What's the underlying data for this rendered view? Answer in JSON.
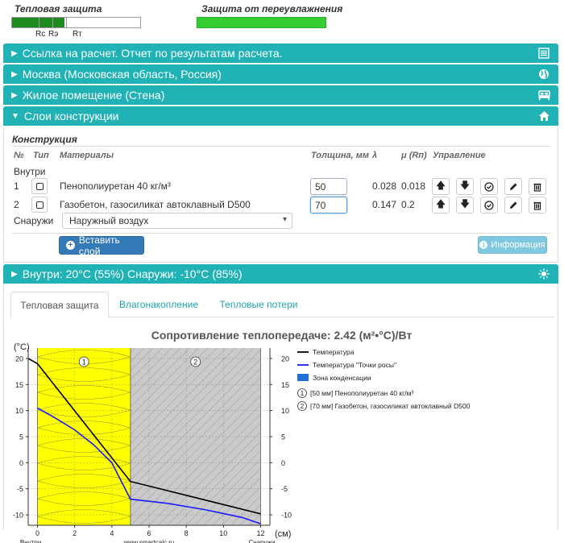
{
  "indicators": {
    "thermal_title": "Тепловая защита",
    "humidity_title": "Защита от переувлажнения",
    "labels": [
      "Rc",
      "Rэ",
      "Rт"
    ],
    "thermal_fill_fraction": 0.41,
    "humidity_fill_fraction": 1.0,
    "thermal_color": "#1f8a1f",
    "humidity_color": "#33cc33"
  },
  "accordion": [
    {
      "label": "Ссылка на расчет. Отчет по результатам расчета.",
      "icon": "list-icon",
      "expanded": false
    },
    {
      "label": "Москва (Московская область, Россия)",
      "icon": "globe-icon",
      "expanded": false
    },
    {
      "label": "Жилое помещение (Стена)",
      "icon": "bed-icon",
      "expanded": false
    },
    {
      "label": "Слои конструкции",
      "icon": "home-icon",
      "expanded": true
    },
    {
      "label": "Внутри: 20°C (55%) Снаружи: -10°C (85%)",
      "icon": "sun-icon",
      "expanded": false
    }
  ],
  "accent_color": "#20b2b5",
  "construction": {
    "title": "Конструкция",
    "headers": {
      "num": "№",
      "type": "Тип",
      "materials": "Материалы",
      "thickness": "Толщина, мм",
      "lambda": "λ",
      "mu": "μ (Rп)",
      "control": "Управление"
    },
    "inside_label": "Внутри",
    "outside_label": "Снаружи",
    "layers": [
      {
        "num": "1",
        "material": "Пенополиуретан 40 кг/м³",
        "thickness": "50",
        "lambda": "0.028",
        "mu": "0.018"
      },
      {
        "num": "2",
        "material": "Газобетон, газосиликат автоклавный D500",
        "thickness": "70",
        "lambda": "0.147",
        "mu": "0.2"
      }
    ],
    "outside_select": "Наружный воздух",
    "insert_button": "Вставить слой",
    "info_button": "Информация"
  },
  "tabs": [
    {
      "label": "Тепловая защита",
      "active": true
    },
    {
      "label": "Влагонакопление",
      "active": false
    },
    {
      "label": "Тепловые потери",
      "active": false
    }
  ],
  "chart_data": {
    "type": "line",
    "title": "Сопротивление теплопередаче: 2.42 (м²•°C)/Вт",
    "ylabel": "(°C)",
    "xlabel": "(см)",
    "xlim": [
      -0.5,
      12.5
    ],
    "ylim": [
      -12,
      22
    ],
    "x_ticks": [
      0,
      2,
      4,
      6,
      8,
      10,
      12
    ],
    "y_ticks": [
      20,
      15,
      10,
      5,
      0,
      -5,
      -10
    ],
    "left_axis_caption": "Внутри",
    "center_caption": "www.smartcalc.ru",
    "right_axis_caption": "Снаружи",
    "layers": [
      {
        "id": "1",
        "x_from": 0,
        "x_to": 5,
        "color": "#ffff00",
        "label": "[50 мм] Пенополиуретан 40 кг/м³"
      },
      {
        "id": "2",
        "x_from": 5,
        "x_to": 12,
        "color": "#c8c8c8",
        "label": "[70 мм] Газобетон, газосиликат автоклавный D500"
      }
    ],
    "series": [
      {
        "name": "Температура",
        "color": "#000000",
        "points": [
          [
            -0.5,
            20
          ],
          [
            0,
            19
          ],
          [
            5,
            -3.6
          ],
          [
            12,
            -9.8
          ]
        ]
      },
      {
        "name": "Температура \"Точки росы\"",
        "color": "#1a1aff",
        "points": [
          [
            0,
            10.5
          ],
          [
            1,
            8.5
          ],
          [
            2,
            6.3
          ],
          [
            3,
            3.5
          ],
          [
            4,
            0
          ],
          [
            5,
            -7
          ],
          [
            7,
            -7.8
          ],
          [
            9,
            -9
          ],
          [
            11,
            -10.5
          ],
          [
            12,
            -11.7
          ]
        ]
      }
    ],
    "legend_extra": "Зона конденсации",
    "legend_extra_color": "#1f6fd6",
    "legend_position": "right"
  }
}
